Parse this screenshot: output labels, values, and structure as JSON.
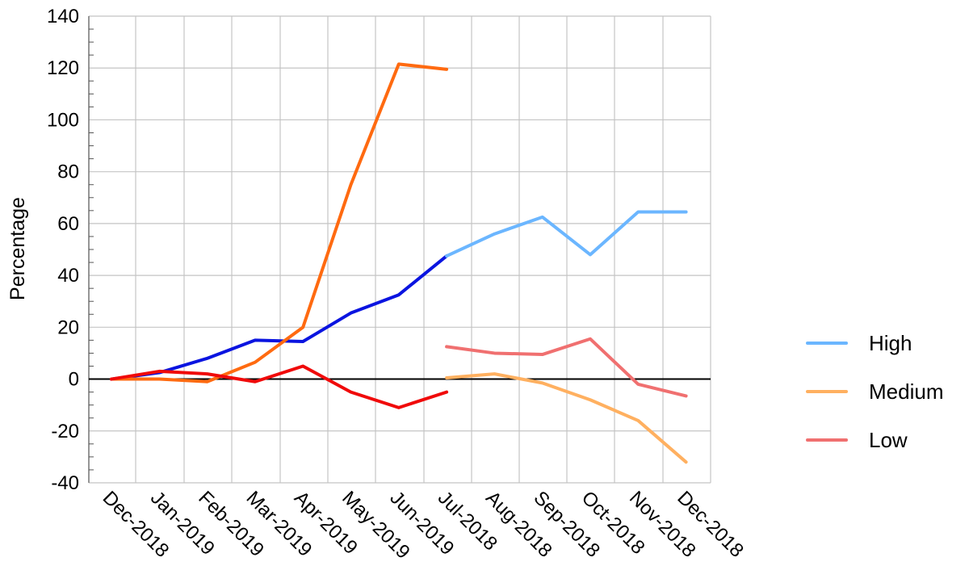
{
  "chart_data": {
    "type": "line",
    "ylabel": "Percentage",
    "xlabel": "",
    "ylim": [
      -40,
      140
    ],
    "yticks": [
      -40,
      -20,
      0,
      20,
      40,
      60,
      80,
      100,
      120,
      140
    ],
    "categories": [
      "Dec-2018",
      "Jan-2019",
      "Feb-2019",
      "Mar-2019",
      "Apr-2019",
      "May-2019",
      "Jun-2019",
      "Jul-2018",
      "Aug-2018",
      "Sep-2018",
      "Oct-2018",
      "Nov-2018",
      "Dec-2018"
    ],
    "grid": true,
    "legend_position": "right",
    "series": [
      {
        "group": "High",
        "color": "#0a14e0",
        "values": [
          0,
          2.5,
          8,
          15,
          14.5,
          25.5,
          32.5,
          47.5,
          null,
          null,
          null,
          null,
          null
        ]
      },
      {
        "group": "Medium",
        "color": "#ff6a10",
        "values": [
          0,
          0,
          -1,
          6.5,
          20,
          75,
          121.5,
          119.5,
          null,
          null,
          null,
          null,
          null
        ]
      },
      {
        "group": "Low",
        "color": "#f00a0a",
        "values": [
          0,
          3,
          2,
          -1,
          5,
          -5,
          -11,
          -5,
          null,
          null,
          null,
          null,
          null
        ]
      },
      {
        "name": "High",
        "color": "#6bb6ff",
        "values": [
          null,
          null,
          null,
          null,
          null,
          null,
          null,
          47.5,
          56,
          62.5,
          48,
          64.5,
          64.5
        ]
      },
      {
        "name": "Medium",
        "color": "#ffb060",
        "values": [
          null,
          null,
          null,
          null,
          null,
          null,
          null,
          0.5,
          2,
          -1.5,
          -8,
          -16,
          -32
        ]
      },
      {
        "name": "Low",
        "color": "#f07070",
        "values": [
          null,
          null,
          null,
          null,
          null,
          null,
          null,
          12.5,
          10,
          9.5,
          15.5,
          -2,
          -6.5
        ]
      }
    ]
  }
}
